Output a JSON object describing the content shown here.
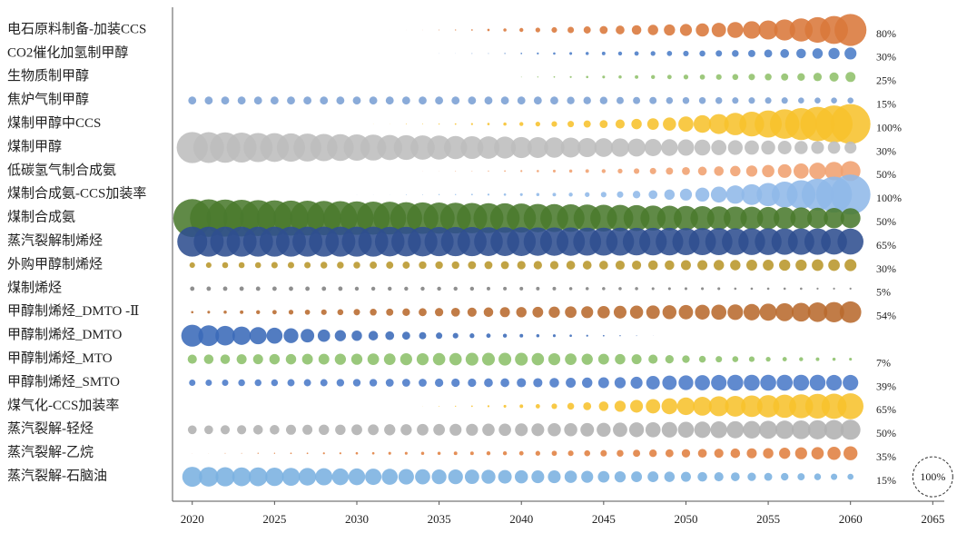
{
  "chart_data": {
    "type": "bubble-rows",
    "x": [
      2020,
      2021,
      2022,
      2023,
      2024,
      2025,
      2026,
      2027,
      2028,
      2029,
      2030,
      2031,
      2032,
      2033,
      2034,
      2035,
      2036,
      2037,
      2038,
      2039,
      2040,
      2041,
      2042,
      2043,
      2044,
      2045,
      2046,
      2047,
      2048,
      2049,
      2050,
      2051,
      2052,
      2053,
      2054,
      2055,
      2056,
      2057,
      2058,
      2059,
      2060
    ],
    "xlim": [
      2018.8,
      2065.7
    ],
    "xticks": [
      2020,
      2025,
      2030,
      2035,
      2040,
      2045,
      2050,
      2055,
      2060,
      2065
    ],
    "size_max": 100,
    "series": [
      {
        "name": "电石原料制备-加装CCS",
        "color": "#d9773a",
        "end_label": "80%",
        "values": [
          0,
          0,
          0,
          0,
          0,
          0,
          0,
          0,
          0,
          0,
          0,
          0,
          0.3,
          0.5,
          1,
          2,
          3,
          4,
          6,
          8,
          10,
          12,
          14,
          16,
          18,
          20,
          22,
          24,
          26,
          28,
          30,
          33,
          36,
          40,
          44,
          48,
          53,
          58,
          64,
          70,
          80
        ]
      },
      {
        "name": "CO2催化加氢制甲醇",
        "color": "#4a7cc7",
        "end_label": "30%",
        "values": [
          0,
          0,
          0,
          0,
          0,
          0,
          0,
          0,
          0,
          0,
          0,
          0,
          0,
          0,
          0,
          1,
          1,
          2,
          2,
          3,
          4,
          5,
          6,
          7,
          8,
          9,
          10,
          11,
          12,
          13,
          14,
          15,
          16,
          17,
          18,
          20,
          22,
          24,
          26,
          28,
          30
        ]
      },
      {
        "name": "生物质制甲醇",
        "color": "#8fc06a",
        "end_label": "25%",
        "values": [
          0,
          0,
          0,
          0,
          0,
          0,
          0,
          0,
          0,
          0,
          0,
          0,
          0,
          0,
          0,
          0,
          0,
          0,
          0,
          0,
          2,
          3,
          4,
          5,
          6,
          7,
          8,
          9,
          10,
          11,
          12,
          13,
          14,
          15,
          16,
          17,
          18,
          19,
          21,
          23,
          25
        ]
      },
      {
        "name": "焦炉气制甲醇",
        "color": "#7a9fd4",
        "end_label": "15%",
        "values": [
          20,
          20,
          20,
          20,
          20,
          20,
          20,
          20,
          20,
          20,
          20,
          20,
          20,
          20,
          20,
          20,
          20,
          20,
          20,
          20,
          20,
          20,
          20,
          19,
          19,
          19,
          18,
          18,
          18,
          17,
          17,
          17,
          17,
          16,
          16,
          16,
          16,
          15,
          15,
          15,
          15
        ]
      },
      {
        "name": "煤制甲醇中CCS",
        "color": "#f7c22c",
        "end_label": "100%",
        "values": [
          0,
          0,
          0,
          0,
          0,
          0,
          0,
          0,
          0,
          0,
          0,
          1,
          1,
          2,
          2,
          3,
          4,
          5,
          6,
          8,
          10,
          12,
          14,
          16,
          18,
          20,
          23,
          26,
          29,
          33,
          38,
          44,
          50,
          56,
          62,
          68,
          74,
          80,
          86,
          93,
          100
        ]
      },
      {
        "name": "煤制甲醇",
        "color": "#bdbdbd",
        "end_label": "30%",
        "values": [
          78,
          77,
          76,
          75,
          73,
          72,
          71,
          70,
          68,
          67,
          66,
          65,
          63,
          62,
          61,
          60,
          58,
          57,
          56,
          55,
          53,
          52,
          51,
          50,
          48,
          47,
          46,
          45,
          43,
          42,
          41,
          40,
          38,
          37,
          36,
          35,
          34,
          33,
          32,
          31,
          30
        ]
      },
      {
        "name": "低碳氢气制合成氨",
        "color": "#f0a070",
        "end_label": "50%",
        "values": [
          0,
          0,
          0,
          0,
          0,
          0,
          0,
          0,
          0,
          0,
          0,
          0,
          0,
          0,
          1,
          1,
          2,
          2,
          3,
          4,
          5,
          6,
          7,
          8,
          9,
          10,
          12,
          14,
          16,
          18,
          20,
          22,
          24,
          26,
          28,
          31,
          34,
          38,
          42,
          46,
          50
        ]
      },
      {
        "name": "煤制合成氨-CCS加装率",
        "color": "#8fb8e8",
        "end_label": "100%",
        "values": [
          0,
          0,
          0,
          0,
          0,
          0,
          0,
          0,
          0,
          0,
          1,
          1,
          1,
          2,
          2,
          3,
          3,
          4,
          5,
          6,
          7,
          8,
          9,
          10,
          12,
          14,
          16,
          19,
          22,
          26,
          30,
          35,
          40,
          46,
          52,
          58,
          65,
          72,
          80,
          90,
          100
        ]
      },
      {
        "name": "煤制合成氨",
        "color": "#4a7a2e",
        "end_label": "50%",
        "values": [
          95,
          94,
          93,
          92,
          90,
          89,
          88,
          87,
          86,
          85,
          84,
          83,
          82,
          80,
          79,
          78,
          77,
          76,
          75,
          74,
          73,
          71,
          70,
          69,
          68,
          67,
          66,
          65,
          63,
          62,
          61,
          60,
          59,
          58,
          57,
          56,
          55,
          54,
          52,
          51,
          50
        ]
      },
      {
        "name": "蒸汽裂解制烯烃",
        "color": "#2f4f8f",
        "end_label": "65%",
        "values": [
          75,
          75,
          75,
          75,
          75,
          75,
          75,
          75,
          75,
          75,
          75,
          75,
          74,
          74,
          74,
          73,
          73,
          73,
          72,
          72,
          72,
          71,
          71,
          71,
          70,
          70,
          70,
          69,
          69,
          69,
          68,
          68,
          68,
          67,
          67,
          67,
          66,
          66,
          66,
          65,
          65
        ]
      },
      {
        "name": "外购甲醇制烯烃",
        "color": "#b8962a",
        "end_label": "30%",
        "values": [
          14,
          14,
          15,
          15,
          15,
          16,
          16,
          16,
          17,
          17,
          17,
          18,
          18,
          18,
          19,
          19,
          19,
          20,
          20,
          20,
          21,
          21,
          21,
          22,
          22,
          22,
          23,
          23,
          24,
          24,
          25,
          25,
          26,
          26,
          27,
          27,
          28,
          28,
          29,
          29,
          30
        ]
      },
      {
        "name": "煤制烯烃",
        "color": "#808080",
        "end_label": "5%",
        "values": [
          11,
          11,
          11,
          11,
          11,
          11,
          11,
          11,
          11,
          11,
          10,
          10,
          10,
          10,
          10,
          10,
          10,
          10,
          9,
          9,
          9,
          9,
          9,
          8,
          8,
          8,
          8,
          8,
          7,
          7,
          7,
          7,
          7,
          6,
          6,
          6,
          6,
          6,
          5,
          5,
          5
        ]
      },
      {
        "name": "甲醇制烯烃_DMTO -Ⅱ",
        "color": "#b86a2e",
        "end_label": "54%",
        "values": [
          6,
          7,
          8,
          9,
          10,
          11,
          12,
          13,
          14,
          15,
          16,
          17,
          18,
          19,
          20,
          21,
          22,
          23,
          24,
          25,
          26,
          27,
          28,
          29,
          30,
          31,
          32,
          33,
          34,
          35,
          36,
          37,
          38,
          39,
          41,
          43,
          45,
          47,
          49,
          51,
          54
        ]
      },
      {
        "name": "甲醇制烯烃_DMTO",
        "color": "#3a6ab8",
        "values": [
          55,
          52,
          49,
          46,
          43,
          40,
          37,
          34,
          31,
          28,
          26,
          24,
          22,
          20,
          18,
          16,
          14,
          12,
          11,
          10,
          9,
          8,
          7,
          6,
          5,
          4,
          3,
          2,
          1,
          0,
          0,
          0,
          0,
          0,
          0,
          0,
          0,
          0,
          0,
          0,
          0
        ]
      },
      {
        "name": "甲醇制烯烃_MTO",
        "color": "#8cc06a",
        "end_label": "7%",
        "values": [
          23,
          24,
          24,
          25,
          25,
          26,
          26,
          27,
          27,
          28,
          28,
          29,
          29,
          30,
          30,
          31,
          31,
          32,
          32,
          32,
          32,
          31,
          30,
          29,
          28,
          27,
          26,
          25,
          23,
          21,
          19,
          17,
          16,
          15,
          14,
          12,
          11,
          10,
          9,
          8,
          7
        ]
      },
      {
        "name": "甲醇制烯烃_SMTO",
        "color": "#4a7ac8",
        "end_label": "39%",
        "values": [
          16,
          16,
          16,
          17,
          17,
          17,
          18,
          18,
          18,
          19,
          19,
          19,
          20,
          20,
          20,
          21,
          21,
          21,
          22,
          22,
          23,
          23,
          24,
          25,
          26,
          27,
          28,
          30,
          34,
          36,
          37,
          38,
          39,
          40,
          40,
          40,
          40,
          40,
          40,
          39,
          39
        ]
      },
      {
        "name": "煤气化-CCS加装率",
        "color": "#f7c22c",
        "end_label": "65%",
        "values": [
          0,
          0,
          0,
          0,
          0,
          0,
          0,
          0,
          0,
          0,
          0,
          0,
          0,
          0,
          1,
          2,
          3,
          4,
          5,
          7,
          9,
          11,
          14,
          17,
          20,
          24,
          28,
          32,
          36,
          40,
          44,
          47,
          50,
          52,
          54,
          56,
          58,
          60,
          62,
          63,
          65
        ]
      },
      {
        "name": "蒸汽裂解-轻烃",
        "color": "#b0b0b0",
        "end_label": "50%",
        "values": [
          22,
          22,
          23,
          23,
          24,
          24,
          25,
          25,
          26,
          26,
          27,
          27,
          28,
          28,
          29,
          29,
          30,
          30,
          31,
          31,
          32,
          32,
          33,
          33,
          34,
          35,
          36,
          37,
          38,
          39,
          40,
          41,
          42,
          43,
          44,
          45,
          46,
          47,
          48,
          49,
          50
        ]
      },
      {
        "name": "蒸汽裂解-乙烷",
        "color": "#e08040",
        "end_label": "35%",
        "values": [
          1,
          1,
          2,
          2,
          3,
          3,
          4,
          4,
          5,
          5,
          6,
          6,
          7,
          7,
          8,
          8,
          9,
          9,
          10,
          10,
          11,
          12,
          13,
          14,
          15,
          16,
          17,
          18,
          19,
          20,
          21,
          22,
          23,
          24,
          25,
          26,
          28,
          30,
          31,
          33,
          35
        ]
      },
      {
        "name": "蒸汽裂解-石脑油",
        "color": "#7ab0e0",
        "end_label": "15%",
        "values": [
          50,
          49,
          48,
          47,
          47,
          46,
          45,
          44,
          43,
          42,
          42,
          41,
          40,
          39,
          38,
          37,
          37,
          36,
          35,
          34,
          33,
          32,
          32,
          31,
          30,
          29,
          28,
          27,
          27,
          26,
          25,
          24,
          23,
          22,
          21,
          20,
          19,
          18,
          17,
          16,
          15
        ]
      }
    ],
    "reference": {
      "x": 2065,
      "value": 100,
      "label": "100%"
    }
  }
}
